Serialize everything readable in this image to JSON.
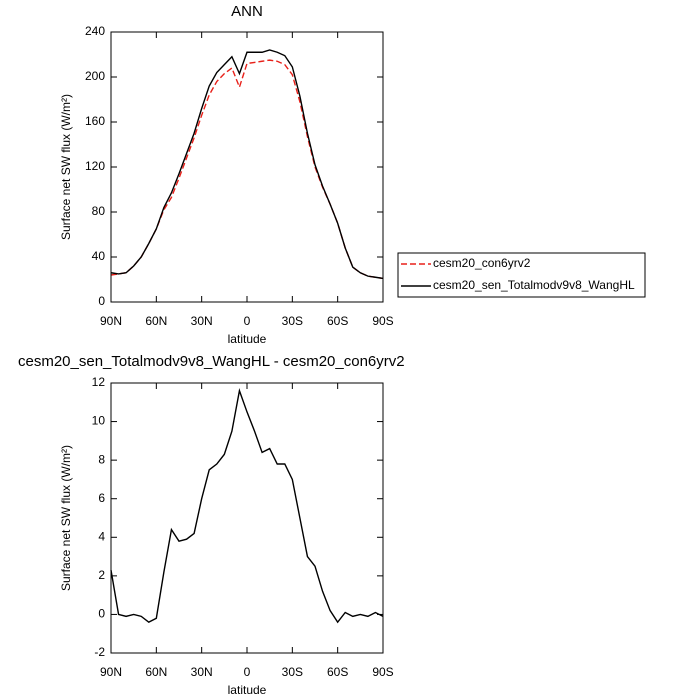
{
  "chart_data": [
    {
      "type": "line",
      "title": "ANN",
      "x_label": "latitude",
      "y_label": "Surface net SW flux (W/m²)",
      "x": [
        90,
        85,
        80,
        75,
        70,
        65,
        60,
        55,
        50,
        45,
        40,
        35,
        30,
        25,
        20,
        15,
        10,
        5,
        0,
        -5,
        -10,
        -15,
        -20,
        -25,
        -30,
        -35,
        -40,
        -45,
        -50,
        -55,
        -60,
        -65,
        -70,
        -75,
        -80,
        -85,
        -90
      ],
      "series": [
        {
          "name": "cesm20_con6yrv2",
          "color": "#e8211a",
          "dash": true,
          "values": [
            24,
            25,
            26,
            32,
            40,
            52,
            65,
            82,
            93,
            110,
            128,
            146,
            166,
            184,
            196,
            203,
            208,
            191,
            212,
            213,
            214,
            215,
            214,
            211,
            202,
            178,
            147,
            120,
            102,
            87,
            70,
            48,
            31,
            26,
            23,
            22,
            21
          ]
        },
        {
          "name": "cesm20_sen_Totalmodv9v8_WangHL",
          "color": "#000000",
          "dash": false,
          "values": [
            26,
            25,
            26,
            32,
            40,
            52,
            65,
            84,
            97,
            114,
            132,
            150,
            172,
            192,
            204,
            211,
            218,
            203,
            222,
            222,
            222,
            224,
            222,
            219,
            209,
            183,
            150,
            122,
            103,
            87,
            70,
            48,
            31,
            26,
            23,
            22,
            21
          ]
        }
      ],
      "xlim": [
        90,
        -90
      ],
      "ylim": [
        0,
        240
      ],
      "xticks": [
        {
          "value": 90,
          "label": "90N"
        },
        {
          "value": 60,
          "label": "60N"
        },
        {
          "value": 30,
          "label": "30N"
        },
        0,
        {
          "value": -30,
          "label": "30S"
        },
        {
          "value": -60,
          "label": "60S"
        },
        {
          "value": -90,
          "label": "90S"
        }
      ],
      "yticks": [
        0,
        40,
        80,
        120,
        160,
        200,
        240
      ],
      "legend": "outside-right"
    },
    {
      "type": "line",
      "title": "cesm20_sen_Totalmodv9v8_WangHL - cesm20_con6yrv2",
      "x_label": "latitude",
      "y_label": "Surface net SW flux (W/m²)",
      "x": [
        90,
        85,
        80,
        75,
        70,
        65,
        60,
        55,
        50,
        45,
        40,
        35,
        30,
        25,
        20,
        15,
        10,
        5,
        0,
        -5,
        -10,
        -15,
        -20,
        -25,
        -30,
        -35,
        -40,
        -45,
        -50,
        -55,
        -60,
        -65,
        -70,
        -75,
        -80,
        -85,
        -90
      ],
      "series": [
        {
          "color": "#000000",
          "dash": false,
          "values": [
            2.3,
            0,
            -0.1,
            0,
            -0.1,
            -0.4,
            -0.2,
            2.2,
            4.4,
            3.8,
            3.9,
            4.2,
            6.0,
            7.5,
            7.8,
            8.3,
            9.5,
            11.6,
            10.5,
            9.5,
            8.4,
            8.6,
            7.8,
            7.8,
            7.0,
            5.0,
            3.0,
            2.5,
            1.2,
            0.2,
            -0.4,
            0.1,
            -0.1,
            0,
            -0.1,
            0.1,
            -0.1
          ]
        }
      ],
      "xlim": [
        90,
        -90
      ],
      "ylim": [
        -2,
        12
      ],
      "xticks": [
        {
          "value": 90,
          "label": "90N"
        },
        {
          "value": 60,
          "label": "60N"
        },
        {
          "value": 30,
          "label": "30N"
        },
        0,
        {
          "value": -30,
          "label": "30S"
        },
        {
          "value": -60,
          "label": "60S"
        },
        {
          "value": -90,
          "label": "90S"
        }
      ],
      "yticks": [
        -2,
        0,
        2,
        4,
        6,
        8,
        10,
        12
      ]
    }
  ]
}
